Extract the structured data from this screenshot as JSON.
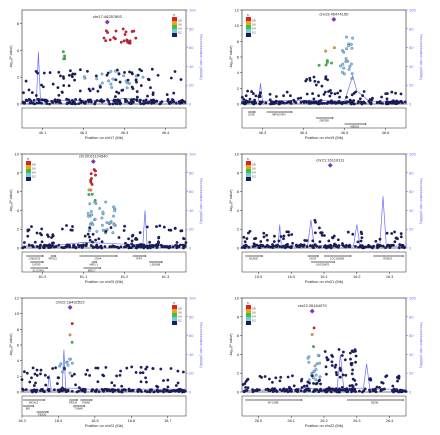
{
  "figure": {
    "title": ""
  },
  "colors": {
    "navy": "#1a1f5c",
    "light_blue": "#7fc4e8",
    "green": "#38c43a",
    "orange": "#f2a11f",
    "red": "#e02020",
    "purple_lead": "#8a2be2",
    "recomb_line": "#6b6bff",
    "gene_line": "#333333"
  },
  "legend": {
    "title": "r²",
    "labels": [
      "0.8",
      "0.6",
      "0.4",
      "0.2"
    ]
  },
  "chart_data": [
    {
      "type": "scatter",
      "title": "chr17:46257893",
      "xlabel": "Position on chr17 (Mb)",
      "ylabel": "-log₁₀(P value)",
      "y2label": "Recombination rate (cM/Mb)",
      "xlim": [
        46.05,
        46.45
      ],
      "ylim": [
        0,
        7
      ],
      "y2lim": [
        0,
        100
      ],
      "xticks": [
        46.1,
        46.2,
        46.3,
        46.4
      ],
      "yticks": [
        0,
        2,
        4,
        6
      ],
      "y2ticks": [
        0,
        20,
        40,
        60,
        80,
        100
      ],
      "lead": {
        "x": 46.258,
        "y": 6.1
      },
      "genes": [],
      "gene_track_empty": true,
      "clusters": [
        {
          "color": "red",
          "x": [
            46.24,
            46.33
          ],
          "y": [
            4.3,
            5.6
          ],
          "n": 22
        },
        {
          "color": "green",
          "x": [
            46.14,
            46.16
          ],
          "y": [
            3.3,
            4.0
          ],
          "n": 4
        },
        {
          "color": "light_blue",
          "x": [
            46.2,
            46.36
          ],
          "y": [
            1.2,
            2.5
          ],
          "n": 22
        },
        {
          "color": "navy",
          "x": [
            46.05,
            46.45
          ],
          "y": [
            0,
            2.6
          ],
          "n": 90
        },
        {
          "color": "navy",
          "x": [
            46.05,
            46.45
          ],
          "y": [
            0,
            0.35
          ],
          "n": 140
        }
      ],
      "recomb": [
        [
          46.05,
          3
        ],
        [
          46.085,
          3
        ],
        [
          46.09,
          55
        ],
        [
          46.095,
          3
        ],
        [
          46.2,
          4
        ],
        [
          46.25,
          3
        ],
        [
          46.3,
          6
        ],
        [
          46.37,
          3
        ],
        [
          46.45,
          3
        ]
      ]
    },
    {
      "type": "scatter",
      "title": "chr19:46474150",
      "xlabel": "Position on chr19 (Mb)",
      "ylabel": "-log₁₀(P value)",
      "y2label": "Recombination rate (cM/Mb)",
      "xlim": [
        46.25,
        46.65
      ],
      "ylim": [
        0,
        12
      ],
      "y2lim": [
        0,
        100
      ],
      "xticks": [
        46.3,
        46.4,
        46.5,
        46.6
      ],
      "yticks": [
        0,
        2,
        4,
        6,
        8,
        10,
        12
      ],
      "y2ticks": [
        0,
        20,
        40,
        60,
        80,
        100
      ],
      "lead": {
        "x": 46.474,
        "y": 10.8
      },
      "genes": [
        {
          "name": "CD3E",
          "start": 46.265,
          "end": 46.28,
          "row": 0
        },
        {
          "name": "MPHOSPH",
          "start": 46.31,
          "end": 46.37,
          "row": 0
        },
        {
          "name": "ZNF358",
          "start": 46.43,
          "end": 46.47,
          "row": 1
        },
        {
          "name": "MED26",
          "start": 46.5,
          "end": 46.55,
          "row": 2
        }
      ],
      "gene_track_empty": false,
      "clusters": [
        {
          "color": "light_blue",
          "x": [
            46.49,
            46.52
          ],
          "y": [
            3.2,
            8.6
          ],
          "n": 22
        },
        {
          "color": "orange",
          "x": [
            46.44,
            46.48
          ],
          "y": [
            6.4,
            7.6
          ],
          "n": 2
        },
        {
          "color": "green",
          "x": [
            46.43,
            46.47
          ],
          "y": [
            4.6,
            5.6
          ],
          "n": 5
        },
        {
          "color": "navy",
          "x": [
            46.4,
            46.46
          ],
          "y": [
            2.2,
            3.6
          ],
          "n": 12
        },
        {
          "color": "navy",
          "x": [
            46.25,
            46.65
          ],
          "y": [
            0,
            1.8
          ],
          "n": 80
        },
        {
          "color": "navy",
          "x": [
            46.25,
            46.65
          ],
          "y": [
            0,
            0.35
          ],
          "n": 150
        }
      ],
      "recomb": [
        [
          46.25,
          3
        ],
        [
          46.29,
          3
        ],
        [
          46.295,
          22
        ],
        [
          46.3,
          3
        ],
        [
          46.42,
          4
        ],
        [
          46.5,
          3
        ],
        [
          46.52,
          30
        ],
        [
          46.53,
          14
        ],
        [
          46.56,
          3
        ],
        [
          46.65,
          3
        ]
      ]
    },
    {
      "type": "scatter",
      "title": "chr20:61124340",
      "xlabel": "Position on chr20 (Mb)",
      "ylabel": "-log₁₀(P value)",
      "y2label": "Recombination rate (cM/Mb)",
      "xlim": [
        60.95,
        61.35
      ],
      "ylim": [
        0,
        10
      ],
      "y2lim": [
        0,
        100
      ],
      "xticks": [
        61.0,
        61.1,
        61.2,
        61.3
      ],
      "yticks": [
        0,
        2,
        4,
        6,
        8,
        10
      ],
      "y2ticks": [
        0,
        20,
        40,
        60,
        80,
        100
      ],
      "lead": {
        "x": 61.124,
        "y": 9.2
      },
      "genes": [
        {
          "name": "CABLES2",
          "start": 60.96,
          "end": 61.0,
          "row": 0
        },
        {
          "name": "RPS21",
          "start": 61.02,
          "end": 61.03,
          "row": 0
        },
        {
          "name": "CDH4",
          "start": 61.09,
          "end": 61.18,
          "row": 0
        },
        {
          "name": "TAF4",
          "start": 61.22,
          "end": 61.25,
          "row": 0
        },
        {
          "name": "GATA5",
          "start": 60.97,
          "end": 61.0,
          "row": 1
        },
        {
          "name": "MIR1-1",
          "start": 61.12,
          "end": 61.13,
          "row": 1
        },
        {
          "name": "LSM14B",
          "start": 61.26,
          "end": 61.29,
          "row": 1
        },
        {
          "name": "SLCO4A1",
          "start": 60.97,
          "end": 61.01,
          "row": 2
        },
        {
          "name": "BIRC7",
          "start": 61.1,
          "end": 61.14,
          "row": 2
        }
      ],
      "gene_track_empty": false,
      "clusters": [
        {
          "color": "red",
          "x": [
            61.11,
            61.13
          ],
          "y": [
            6.6,
            8.6
          ],
          "n": 8
        },
        {
          "color": "orange",
          "x": [
            61.11,
            61.13
          ],
          "y": [
            6.0,
            6.4
          ],
          "n": 2
        },
        {
          "color": "green",
          "x": [
            61.11,
            61.13
          ],
          "y": [
            5.0,
            5.8
          ],
          "n": 3
        },
        {
          "color": "light_blue",
          "x": [
            61.11,
            61.18
          ],
          "y": [
            1.6,
            5.0
          ],
          "n": 40
        },
        {
          "color": "navy",
          "x": [
            60.95,
            61.35
          ],
          "y": [
            0.2,
            2.4
          ],
          "n": 80
        },
        {
          "color": "navy",
          "x": [
            60.95,
            61.35
          ],
          "y": [
            0,
            0.35
          ],
          "n": 140
        }
      ],
      "recomb": [
        [
          60.95,
          2
        ],
        [
          61.0,
          2
        ],
        [
          61.06,
          4
        ],
        [
          61.1,
          6
        ],
        [
          61.16,
          5
        ],
        [
          61.2,
          4
        ],
        [
          61.245,
          4
        ],
        [
          61.25,
          40
        ],
        [
          61.255,
          3
        ],
        [
          61.35,
          3
        ]
      ]
    },
    {
      "type": "scatter",
      "title": "chr21:16119111",
      "xlabel": "Position on chr21 (Mb)",
      "ylabel": "-log₁₀(P value)",
      "y2label": "Recombination rate (cM/Mb)",
      "xlim": [
        15.85,
        16.35
      ],
      "ylim": [
        0,
        10
      ],
      "y2lim": [
        0,
        100
      ],
      "xticks": [
        15.9,
        16.0,
        16.1,
        16.2,
        16.3
      ],
      "yticks": [
        0,
        2,
        4,
        6,
        8,
        10
      ],
      "y2ticks": [
        0,
        20,
        40,
        60,
        80,
        100
      ],
      "lead": {
        "x": 16.119,
        "y": 8.8
      },
      "genes": [
        {
          "name": "NCAM2",
          "start": 15.86,
          "end": 15.91,
          "row": 0
        },
        {
          "name": "CXCR",
          "start": 16.05,
          "end": 16.08,
          "row": 0
        },
        {
          "name": "LOC100286",
          "start": 16.1,
          "end": 16.18,
          "row": 0
        },
        {
          "name": "ROBO1",
          "start": 16.25,
          "end": 16.34,
          "row": 0
        },
        {
          "name": "LINC00478",
          "start": 16.06,
          "end": 16.13,
          "row": 1
        }
      ],
      "gene_track_empty": false,
      "clusters": [
        {
          "color": "navy",
          "x": [
            16.05,
            16.1
          ],
          "y": [
            1.4,
            3.0
          ],
          "n": 4
        },
        {
          "color": "navy",
          "x": [
            15.85,
            16.35
          ],
          "y": [
            0.2,
            1.8
          ],
          "n": 70
        },
        {
          "color": "navy",
          "x": [
            15.85,
            16.35
          ],
          "y": [
            0,
            0.35
          ],
          "n": 130
        }
      ],
      "recomb": [
        [
          15.85,
          2
        ],
        [
          15.96,
          2
        ],
        [
          15.965,
          25
        ],
        [
          15.97,
          2
        ],
        [
          16.05,
          2
        ],
        [
          16.06,
          30
        ],
        [
          16.07,
          2
        ],
        [
          16.12,
          3
        ],
        [
          16.19,
          2
        ],
        [
          16.2,
          25
        ],
        [
          16.21,
          2
        ],
        [
          16.27,
          2
        ],
        [
          16.28,
          55
        ],
        [
          16.29,
          2
        ],
        [
          16.35,
          2
        ]
      ]
    },
    {
      "type": "scatter",
      "title": "chr22:18432522",
      "xlabel": "Position on chr22 (Mb)",
      "ylabel": "-log₁₀(P value)",
      "y2label": "Recombination rate (cM/Mb)",
      "xlim": [
        18.3,
        18.75
      ],
      "ylim": [
        0,
        12
      ],
      "y2lim": [
        0,
        100
      ],
      "xticks": [
        18.3,
        18.4,
        18.5,
        18.6,
        18.7
      ],
      "yticks": [
        0,
        2,
        4,
        6,
        8,
        10,
        12
      ],
      "y2ticks": [
        0,
        20,
        40,
        60,
        80,
        100
      ],
      "lead": {
        "x": 18.432,
        "y": 10.8
      },
      "genes": [
        {
          "name": "MICAL3",
          "start": 18.3,
          "end": 18.36,
          "row": 0
        },
        {
          "name": "PEX26",
          "start": 18.43,
          "end": 18.45,
          "row": 0
        },
        {
          "name": "TUBA8",
          "start": 18.46,
          "end": 18.49,
          "row": 0
        },
        {
          "name": "BID",
          "start": 18.3,
          "end": 18.33,
          "row": 1
        },
        {
          "name": "PEX26",
          "start": 18.34,
          "end": 18.37,
          "row": 2
        },
        {
          "name": "TUBA8",
          "start": 18.44,
          "end": 18.47,
          "row": 1
        }
      ],
      "gene_track_empty": false,
      "clusters": [
        {
          "color": "red",
          "x": [
            18.43,
            18.44
          ],
          "y": [
            8.4,
            8.8
          ],
          "n": 1
        },
        {
          "color": "orange",
          "x": [
            18.43,
            18.44
          ],
          "y": [
            7.0,
            7.4
          ],
          "n": 1
        },
        {
          "color": "green",
          "x": [
            18.43,
            18.44
          ],
          "y": [
            6.0,
            6.4
          ],
          "n": 1
        },
        {
          "color": "light_blue",
          "x": [
            18.4,
            18.46
          ],
          "y": [
            2.4,
            4.2
          ],
          "n": 12
        },
        {
          "color": "navy",
          "x": [
            18.3,
            18.75
          ],
          "y": [
            0.2,
            3.2
          ],
          "n": 70
        },
        {
          "color": "navy",
          "x": [
            18.3,
            18.75
          ],
          "y": [
            0,
            0.35
          ],
          "n": 130
        }
      ],
      "recomb": [
        [
          18.3,
          2
        ],
        [
          18.37,
          2
        ],
        [
          18.375,
          18
        ],
        [
          18.38,
          2
        ],
        [
          18.41,
          2
        ],
        [
          18.415,
          45
        ],
        [
          18.42,
          4
        ],
        [
          18.47,
          4
        ],
        [
          18.48,
          3
        ],
        [
          18.75,
          3
        ]
      ]
    },
    {
      "type": "scatter",
      "title": "chr22:26164079",
      "xlabel": "Position on chr22 (Mb)",
      "ylabel": "-log₁₀(P value)",
      "y2label": "Recombination rate (cM/Mb)",
      "xlim": [
        25.95,
        26.45
      ],
      "ylim": [
        0,
        10
      ],
      "y2lim": [
        0,
        100
      ],
      "xticks": [
        26.0,
        26.1,
        26.2,
        26.3,
        26.4
      ],
      "yticks": [
        0,
        2,
        4,
        6,
        8,
        10
      ],
      "y2ticks": [
        0,
        20,
        40,
        60,
        80,
        100
      ],
      "lead": {
        "x": 26.164,
        "y": 8.6
      },
      "genes": [
        {
          "name": "MYO18B",
          "start": 25.96,
          "end": 26.13,
          "row": 0
        },
        {
          "name": "SEZ6L",
          "start": 26.27,
          "end": 26.44,
          "row": 0
        }
      ],
      "gene_track_empty": false,
      "clusters": [
        {
          "color": "red",
          "x": [
            26.16,
            26.17
          ],
          "y": [
            6.6,
            7.0
          ],
          "n": 1
        },
        {
          "color": "orange",
          "x": [
            26.16,
            26.17
          ],
          "y": [
            5.8,
            6.2
          ],
          "n": 1
        },
        {
          "color": "green",
          "x": [
            26.16,
            26.17
          ],
          "y": [
            4.6,
            5.0
          ],
          "n": 1
        },
        {
          "color": "light_blue",
          "x": [
            26.15,
            26.19
          ],
          "y": [
            1.0,
            4.2
          ],
          "n": 20
        },
        {
          "color": "navy",
          "x": [
            26.2,
            26.3
          ],
          "y": [
            1.5,
            4.6
          ],
          "n": 35
        },
        {
          "color": "navy",
          "x": [
            25.95,
            26.45
          ],
          "y": [
            0,
            1.8
          ],
          "n": 70
        },
        {
          "color": "navy",
          "x": [
            25.95,
            26.45
          ],
          "y": [
            0,
            0.35
          ],
          "n": 140
        }
      ],
      "recomb": [
        [
          25.95,
          2
        ],
        [
          26.1,
          2
        ],
        [
          26.15,
          5
        ],
        [
          26.17,
          3
        ],
        [
          26.24,
          4
        ],
        [
          26.25,
          40
        ],
        [
          26.26,
          4
        ],
        [
          26.32,
          4
        ],
        [
          26.33,
          30
        ],
        [
          26.34,
          3
        ],
        [
          26.45,
          3
        ]
      ]
    }
  ]
}
